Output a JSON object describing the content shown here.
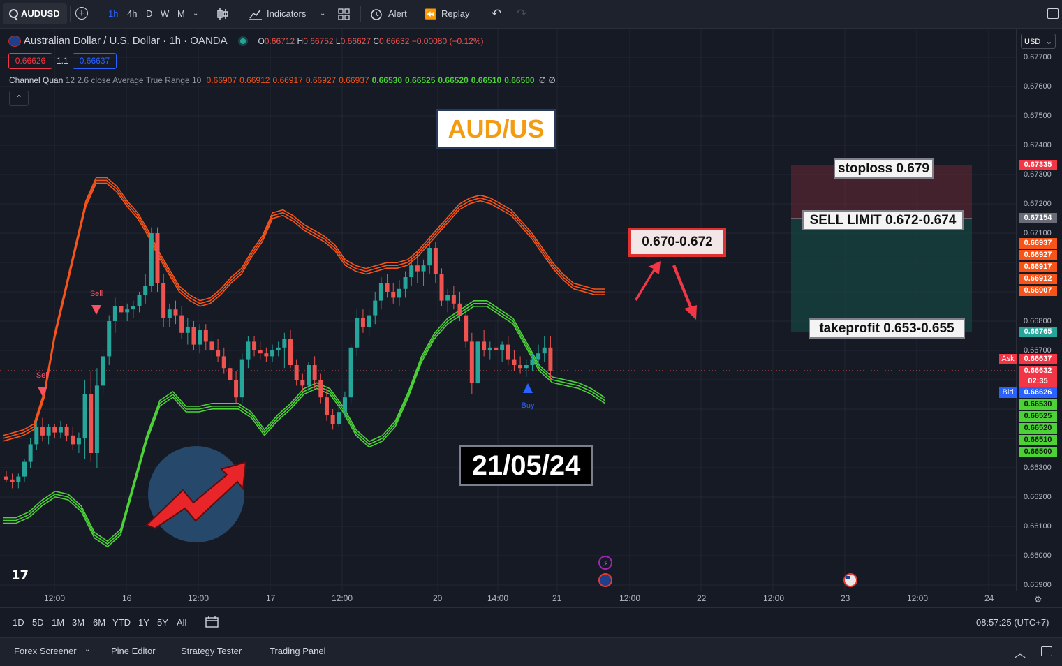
{
  "toolbar": {
    "symbol": "AUDUSD",
    "intervals": [
      "1h",
      "4h",
      "D",
      "W",
      "M"
    ],
    "indicators_label": "Indicators",
    "alert_label": "Alert",
    "replay_label": "Replay"
  },
  "legend": {
    "title": "Australian Dollar / U.S. Dollar · 1h · OANDA",
    "ohlc": [
      {
        "k": "O",
        "v": "0.66712"
      },
      {
        "k": "H",
        "v": "0.66752"
      },
      {
        "k": "L",
        "v": "0.66627"
      },
      {
        "k": "C",
        "v": "0.66632"
      }
    ],
    "change": "−0.00080 (−0.12%)",
    "sell_price": "0.66626",
    "spread": "1.1",
    "buy_price": "0.66637",
    "indicator_name": "Channel Quan",
    "indicator_params": "12 2.6 close Average True Range 10",
    "indicator_values_red": [
      "0.66907",
      "0.66912",
      "0.66917",
      "0.66927",
      "0.66937"
    ],
    "indicator_values_green": [
      "0.66530",
      "0.66525",
      "0.66520",
      "0.66510",
      "0.66500"
    ],
    "indicator_tail": "∅ ∅"
  },
  "currency_select": "USD",
  "price_axis": [
    "0.67700",
    "0.67600",
    "0.67500",
    "0.67400",
    "0.67300",
    "0.67200",
    "0.67100",
    "0.66800",
    "0.66700",
    "0.66300",
    "0.66200",
    "0.66100",
    "0.66000",
    "0.65900"
  ],
  "price_tags": {
    "stoploss": "0.67335",
    "entry": "0.67154",
    "red": [
      "0.66937",
      "0.66927",
      "0.66917",
      "0.66912",
      "0.66907"
    ],
    "takeprofit": "0.66765",
    "ask_label": "Ask",
    "ask": "0.66637",
    "last": "0.66632",
    "countdown": "02:35",
    "bid_label": "Bid",
    "bid": "0.66626",
    "green": [
      "0.66530",
      "0.66525",
      "0.66520",
      "0.66510",
      "0.66500"
    ]
  },
  "time_axis": [
    "12:00",
    "16",
    "12:00",
    "17",
    "12:00",
    "20",
    "14:00",
    "21",
    "12:00",
    "22",
    "12:00",
    "23",
    "12:00",
    "24"
  ],
  "annotations": {
    "pair_title": "AUD/US",
    "zone": "0.670-0.672",
    "date": "21/05/24",
    "stoploss": "stoploss 0.679",
    "sell_limit": "SELL LIMIT 0.672-0.674",
    "takeprofit": "takeprofit 0.653-0.655"
  },
  "signals": {
    "sell": "Sell",
    "buy": "Buy"
  },
  "ranges": [
    "1D",
    "5D",
    "1M",
    "3M",
    "6M",
    "YTD",
    "1Y",
    "5Y",
    "All"
  ],
  "clock": "08:57:25 (UTC+7)",
  "bottom_tabs": [
    "Forex Screener",
    "Pine Editor",
    "Strategy Tester",
    "Trading Panel"
  ],
  "colors": {
    "bull": "#26a69a",
    "bear": "#ef5350",
    "upper_band": "#f7541a",
    "lower_band": "#4cd137",
    "accent": "#2962ff"
  },
  "chart_data": {
    "type": "candlestick",
    "x": [
      "15 08:00",
      "15 09:00",
      "15 10:00",
      "15 11:00",
      "15 12:00",
      "15 13:00",
      "15 14:00",
      "15 15:00",
      "15 16:00",
      "15 17:00",
      "15 18:00",
      "15 19:00",
      "15 20:00",
      "15 21:00",
      "15 22:00",
      "15 23:00",
      "16 00:00",
      "16 01:00",
      "16 02:00",
      "16 03:00",
      "16 04:00",
      "16 05:00",
      "16 06:00",
      "16 07:00",
      "16 08:00",
      "16 09:00",
      "16 10:00",
      "16 11:00",
      "16 12:00",
      "16 13:00",
      "16 14:00",
      "16 15:00",
      "16 16:00",
      "16 17:00",
      "16 18:00",
      "16 19:00",
      "16 20:00",
      "16 21:00",
      "16 22:00",
      "16 23:00",
      "17 00:00",
      "17 01:00",
      "17 02:00",
      "17 03:00",
      "17 04:00",
      "17 05:00",
      "17 06:00",
      "17 07:00",
      "17 08:00",
      "17 09:00",
      "17 10:00",
      "17 11:00",
      "17 12:00",
      "17 13:00",
      "17 14:00",
      "17 15:00",
      "17 16:00",
      "17 17:00",
      "17 18:00",
      "17 19:00",
      "17 20:00",
      "17 21:00",
      "17 22:00",
      "17 23:00",
      "20 00:00",
      "20 01:00",
      "20 02:00",
      "20 03:00",
      "20 04:00",
      "20 05:00",
      "20 06:00",
      "20 07:00",
      "20 08:00",
      "20 09:00",
      "20 10:00",
      "20 11:00",
      "20 12:00",
      "20 13:00",
      "20 14:00",
      "20 15:00",
      "20 16:00",
      "20 17:00",
      "20 18:00",
      "20 19:00",
      "20 20:00",
      "20 21:00",
      "20 22:00",
      "20 23:00",
      "21 00:00",
      "21 01:00",
      "21 02:00",
      "21 03:00",
      "21 04:00",
      "21 05:00",
      "21 06:00",
      "21 07:00",
      "21 08:00",
      "21 09:00",
      "21 10:00",
      "21 11:00"
    ],
    "ohlc": [
      [
        0.6627,
        0.6629,
        0.6625,
        0.6626
      ],
      [
        0.6626,
        0.6628,
        0.6623,
        0.6625
      ],
      [
        0.6625,
        0.6628,
        0.6623,
        0.6627
      ],
      [
        0.6627,
        0.6633,
        0.6625,
        0.6632
      ],
      [
        0.6632,
        0.664,
        0.663,
        0.6638
      ],
      [
        0.6638,
        0.6646,
        0.6636,
        0.6644
      ],
      [
        0.6644,
        0.6647,
        0.6639,
        0.6641
      ],
      [
        0.6641,
        0.6645,
        0.6638,
        0.6644
      ],
      [
        0.6644,
        0.6645,
        0.664,
        0.6642
      ],
      [
        0.6642,
        0.6646,
        0.664,
        0.6644
      ],
      [
        0.6644,
        0.6645,
        0.6639,
        0.6641
      ],
      [
        0.6641,
        0.6644,
        0.6636,
        0.6638
      ],
      [
        0.6638,
        0.6642,
        0.6635,
        0.664
      ],
      [
        0.664,
        0.666,
        0.6633,
        0.6655
      ],
      [
        0.6655,
        0.6663,
        0.6632,
        0.6635
      ],
      [
        0.6635,
        0.6664,
        0.663,
        0.6658
      ],
      [
        0.6658,
        0.667,
        0.6655,
        0.6668
      ],
      [
        0.6668,
        0.6682,
        0.6665,
        0.668
      ],
      [
        0.668,
        0.6688,
        0.6676,
        0.6685
      ],
      [
        0.6685,
        0.6687,
        0.668,
        0.6683
      ],
      [
        0.6683,
        0.6686,
        0.668,
        0.6684
      ],
      [
        0.6684,
        0.6687,
        0.6681,
        0.6685
      ],
      [
        0.6685,
        0.669,
        0.6683,
        0.6689
      ],
      [
        0.6689,
        0.6696,
        0.6686,
        0.6692
      ],
      [
        0.6692,
        0.6712,
        0.669,
        0.671
      ],
      [
        0.671,
        0.6712,
        0.669,
        0.6693
      ],
      [
        0.6693,
        0.6696,
        0.6678,
        0.6681
      ],
      [
        0.6681,
        0.6686,
        0.6678,
        0.6684
      ],
      [
        0.6684,
        0.6687,
        0.6679,
        0.6682
      ],
      [
        0.6682,
        0.6685,
        0.6674,
        0.6676
      ],
      [
        0.6676,
        0.6681,
        0.6672,
        0.6678
      ],
      [
        0.6678,
        0.668,
        0.667,
        0.6672
      ],
      [
        0.6672,
        0.6679,
        0.6669,
        0.6677
      ],
      [
        0.6677,
        0.6679,
        0.667,
        0.6673
      ],
      [
        0.6673,
        0.6676,
        0.6667,
        0.667
      ],
      [
        0.667,
        0.6674,
        0.6666,
        0.6668
      ],
      [
        0.6668,
        0.6671,
        0.6662,
        0.6664
      ],
      [
        0.6664,
        0.6666,
        0.6658,
        0.666
      ],
      [
        0.666,
        0.6663,
        0.6652,
        0.6654
      ],
      [
        0.6654,
        0.6669,
        0.6652,
        0.6667
      ],
      [
        0.6667,
        0.6675,
        0.6664,
        0.6673
      ],
      [
        0.6673,
        0.6675,
        0.6668,
        0.667
      ],
      [
        0.667,
        0.6673,
        0.6667,
        0.6669
      ],
      [
        0.6669,
        0.6671,
        0.6666,
        0.6668
      ],
      [
        0.6668,
        0.6672,
        0.6666,
        0.667
      ],
      [
        0.667,
        0.6673,
        0.6668,
        0.6671
      ],
      [
        0.6671,
        0.6676,
        0.6664,
        0.6674
      ],
      [
        0.6674,
        0.6677,
        0.6664,
        0.6665
      ],
      [
        0.6665,
        0.6667,
        0.6658,
        0.666
      ],
      [
        0.666,
        0.6662,
        0.6656,
        0.6658
      ],
      [
        0.6658,
        0.6666,
        0.6656,
        0.6665
      ],
      [
        0.6665,
        0.6668,
        0.6657,
        0.666
      ],
      [
        0.666,
        0.6662,
        0.6652,
        0.6654
      ],
      [
        0.6654,
        0.6657,
        0.6646,
        0.6648
      ],
      [
        0.6648,
        0.665,
        0.6643,
        0.6645
      ],
      [
        0.6645,
        0.6651,
        0.6644,
        0.6649
      ],
      [
        0.6649,
        0.6656,
        0.6647,
        0.6654
      ],
      [
        0.6654,
        0.6672,
        0.6652,
        0.6671
      ],
      [
        0.6671,
        0.6684,
        0.6668,
        0.6681
      ],
      [
        0.6681,
        0.6684,
        0.6676,
        0.6678
      ],
      [
        0.6678,
        0.6684,
        0.6675,
        0.6682
      ],
      [
        0.6682,
        0.669,
        0.6679,
        0.6687
      ],
      [
        0.6687,
        0.6695,
        0.6684,
        0.6693
      ],
      [
        0.6693,
        0.6696,
        0.6688,
        0.669
      ],
      [
        0.669,
        0.6693,
        0.6686,
        0.6688
      ],
      [
        0.6688,
        0.6694,
        0.6685,
        0.6691
      ],
      [
        0.6691,
        0.6697,
        0.6688,
        0.6695
      ],
      [
        0.6695,
        0.6702,
        0.6692,
        0.6699
      ],
      [
        0.6699,
        0.6704,
        0.6693,
        0.6697
      ],
      [
        0.6697,
        0.6701,
        0.6692,
        0.6699
      ],
      [
        0.6699,
        0.6709,
        0.6696,
        0.6705
      ],
      [
        0.6705,
        0.6707,
        0.6693,
        0.6696
      ],
      [
        0.6696,
        0.6698,
        0.6685,
        0.6687
      ],
      [
        0.6687,
        0.6691,
        0.6683,
        0.6689
      ],
      [
        0.6689,
        0.6692,
        0.6684,
        0.6686
      ],
      [
        0.6686,
        0.669,
        0.668,
        0.6682
      ],
      [
        0.6682,
        0.6686,
        0.6671,
        0.6673
      ],
      [
        0.6673,
        0.6676,
        0.6655,
        0.6659
      ],
      [
        0.6659,
        0.6675,
        0.6657,
        0.6673
      ],
      [
        0.6673,
        0.6677,
        0.6668,
        0.667
      ],
      [
        0.667,
        0.6673,
        0.6667,
        0.6671
      ],
      [
        0.6671,
        0.6679,
        0.6668,
        0.667
      ],
      [
        0.667,
        0.6673,
        0.6666,
        0.6672
      ],
      [
        0.6672,
        0.6675,
        0.6665,
        0.6667
      ],
      [
        0.6667,
        0.667,
        0.6663,
        0.6665
      ],
      [
        0.6665,
        0.6668,
        0.6662,
        0.6664
      ],
      [
        0.6664,
        0.6667,
        0.6661,
        0.6665
      ],
      [
        0.6665,
        0.6669,
        0.6663,
        0.6667
      ],
      [
        0.6667,
        0.6672,
        0.6665,
        0.6669
      ],
      [
        0.6669,
        0.6675,
        0.6666,
        0.6671
      ],
      [
        0.6671,
        0.6675,
        0.666,
        0.6663
      ]
    ],
    "upper_band": [
      0.664,
      0.6641,
      0.6642,
      0.6644,
      0.6655,
      0.6675,
      0.669,
      0.6705,
      0.672,
      0.6728,
      0.6728,
      0.6725,
      0.672,
      0.6716,
      0.671,
      0.6703,
      0.6697,
      0.6691,
      0.6688,
      0.6686,
      0.6687,
      0.669,
      0.6694,
      0.6697,
      0.6703,
      0.6708,
      0.6716,
      0.6717,
      0.6715,
      0.6712,
      0.671,
      0.6708,
      0.6705,
      0.67,
      0.6698,
      0.6697,
      0.6698,
      0.6699,
      0.6699,
      0.67,
      0.6703,
      0.6707,
      0.6711,
      0.6715,
      0.6719,
      0.6721,
      0.6722,
      0.6721,
      0.6719,
      0.6717,
      0.6713,
      0.6709,
      0.6704,
      0.6699,
      0.6695,
      0.6692,
      0.6691,
      0.669,
      0.669
    ],
    "lower_band": [
      0.6612,
      0.6612,
      0.6614,
      0.6618,
      0.6621,
      0.662,
      0.6616,
      0.6607,
      0.6604,
      0.6608,
      0.6624,
      0.664,
      0.6652,
      0.6655,
      0.665,
      0.665,
      0.6651,
      0.6651,
      0.6651,
      0.6648,
      0.6642,
      0.6647,
      0.6651,
      0.6656,
      0.6658,
      0.6656,
      0.665,
      0.6642,
      0.6638,
      0.664,
      0.6645,
      0.6655,
      0.6667,
      0.6675,
      0.668,
      0.6683,
      0.6686,
      0.6686,
      0.6683,
      0.668,
      0.6672,
      0.6664,
      0.666,
      0.6659,
      0.6658,
      0.6656,
      0.6653
    ],
    "ylim": [
      0.659,
      0.6778
    ]
  }
}
